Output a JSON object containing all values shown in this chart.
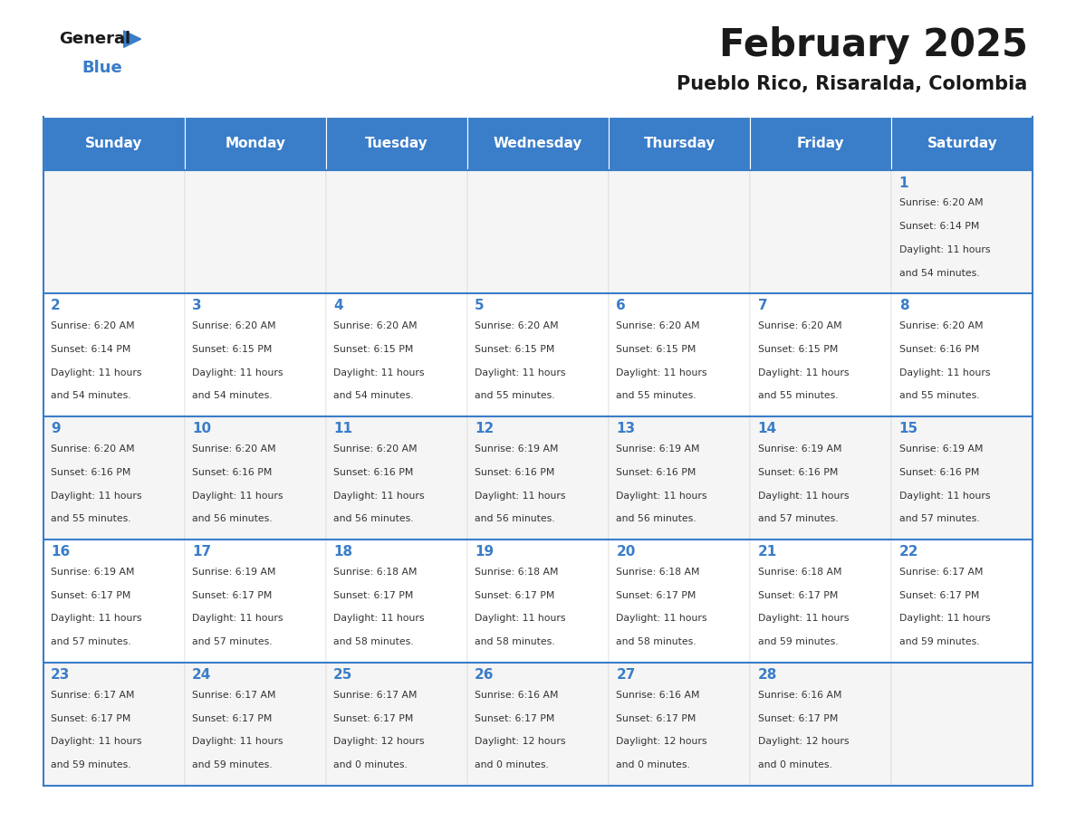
{
  "title": "February 2025",
  "subtitle": "Pueblo Rico, Risaralda, Colombia",
  "header_color": "#3A7DC9",
  "header_text_color": "#FFFFFF",
  "cell_bg_even": "#F5F5F5",
  "cell_bg_odd": "#FFFFFF",
  "day_number_color": "#3A7DC9",
  "body_text_color": "#333333",
  "border_color": "#3A7DC9",
  "days_of_week": [
    "Sunday",
    "Monday",
    "Tuesday",
    "Wednesday",
    "Thursday",
    "Friday",
    "Saturday"
  ],
  "weeks": [
    [
      {
        "day": "",
        "info": ""
      },
      {
        "day": "",
        "info": ""
      },
      {
        "day": "",
        "info": ""
      },
      {
        "day": "",
        "info": ""
      },
      {
        "day": "",
        "info": ""
      },
      {
        "day": "",
        "info": ""
      },
      {
        "day": "1",
        "info": "Sunrise: 6:20 AM\nSunset: 6:14 PM\nDaylight: 11 hours\nand 54 minutes."
      }
    ],
    [
      {
        "day": "2",
        "info": "Sunrise: 6:20 AM\nSunset: 6:14 PM\nDaylight: 11 hours\nand 54 minutes."
      },
      {
        "day": "3",
        "info": "Sunrise: 6:20 AM\nSunset: 6:15 PM\nDaylight: 11 hours\nand 54 minutes."
      },
      {
        "day": "4",
        "info": "Sunrise: 6:20 AM\nSunset: 6:15 PM\nDaylight: 11 hours\nand 54 minutes."
      },
      {
        "day": "5",
        "info": "Sunrise: 6:20 AM\nSunset: 6:15 PM\nDaylight: 11 hours\nand 55 minutes."
      },
      {
        "day": "6",
        "info": "Sunrise: 6:20 AM\nSunset: 6:15 PM\nDaylight: 11 hours\nand 55 minutes."
      },
      {
        "day": "7",
        "info": "Sunrise: 6:20 AM\nSunset: 6:15 PM\nDaylight: 11 hours\nand 55 minutes."
      },
      {
        "day": "8",
        "info": "Sunrise: 6:20 AM\nSunset: 6:16 PM\nDaylight: 11 hours\nand 55 minutes."
      }
    ],
    [
      {
        "day": "9",
        "info": "Sunrise: 6:20 AM\nSunset: 6:16 PM\nDaylight: 11 hours\nand 55 minutes."
      },
      {
        "day": "10",
        "info": "Sunrise: 6:20 AM\nSunset: 6:16 PM\nDaylight: 11 hours\nand 56 minutes."
      },
      {
        "day": "11",
        "info": "Sunrise: 6:20 AM\nSunset: 6:16 PM\nDaylight: 11 hours\nand 56 minutes."
      },
      {
        "day": "12",
        "info": "Sunrise: 6:19 AM\nSunset: 6:16 PM\nDaylight: 11 hours\nand 56 minutes."
      },
      {
        "day": "13",
        "info": "Sunrise: 6:19 AM\nSunset: 6:16 PM\nDaylight: 11 hours\nand 56 minutes."
      },
      {
        "day": "14",
        "info": "Sunrise: 6:19 AM\nSunset: 6:16 PM\nDaylight: 11 hours\nand 57 minutes."
      },
      {
        "day": "15",
        "info": "Sunrise: 6:19 AM\nSunset: 6:16 PM\nDaylight: 11 hours\nand 57 minutes."
      }
    ],
    [
      {
        "day": "16",
        "info": "Sunrise: 6:19 AM\nSunset: 6:17 PM\nDaylight: 11 hours\nand 57 minutes."
      },
      {
        "day": "17",
        "info": "Sunrise: 6:19 AM\nSunset: 6:17 PM\nDaylight: 11 hours\nand 57 minutes."
      },
      {
        "day": "18",
        "info": "Sunrise: 6:18 AM\nSunset: 6:17 PM\nDaylight: 11 hours\nand 58 minutes."
      },
      {
        "day": "19",
        "info": "Sunrise: 6:18 AM\nSunset: 6:17 PM\nDaylight: 11 hours\nand 58 minutes."
      },
      {
        "day": "20",
        "info": "Sunrise: 6:18 AM\nSunset: 6:17 PM\nDaylight: 11 hours\nand 58 minutes."
      },
      {
        "day": "21",
        "info": "Sunrise: 6:18 AM\nSunset: 6:17 PM\nDaylight: 11 hours\nand 59 minutes."
      },
      {
        "day": "22",
        "info": "Sunrise: 6:17 AM\nSunset: 6:17 PM\nDaylight: 11 hours\nand 59 minutes."
      }
    ],
    [
      {
        "day": "23",
        "info": "Sunrise: 6:17 AM\nSunset: 6:17 PM\nDaylight: 11 hours\nand 59 minutes."
      },
      {
        "day": "24",
        "info": "Sunrise: 6:17 AM\nSunset: 6:17 PM\nDaylight: 11 hours\nand 59 minutes."
      },
      {
        "day": "25",
        "info": "Sunrise: 6:17 AM\nSunset: 6:17 PM\nDaylight: 12 hours\nand 0 minutes."
      },
      {
        "day": "26",
        "info": "Sunrise: 6:16 AM\nSunset: 6:17 PM\nDaylight: 12 hours\nand 0 minutes."
      },
      {
        "day": "27",
        "info": "Sunrise: 6:16 AM\nSunset: 6:17 PM\nDaylight: 12 hours\nand 0 minutes."
      },
      {
        "day": "28",
        "info": "Sunrise: 6:16 AM\nSunset: 6:17 PM\nDaylight: 12 hours\nand 0 minutes."
      },
      {
        "day": "",
        "info": ""
      }
    ]
  ]
}
